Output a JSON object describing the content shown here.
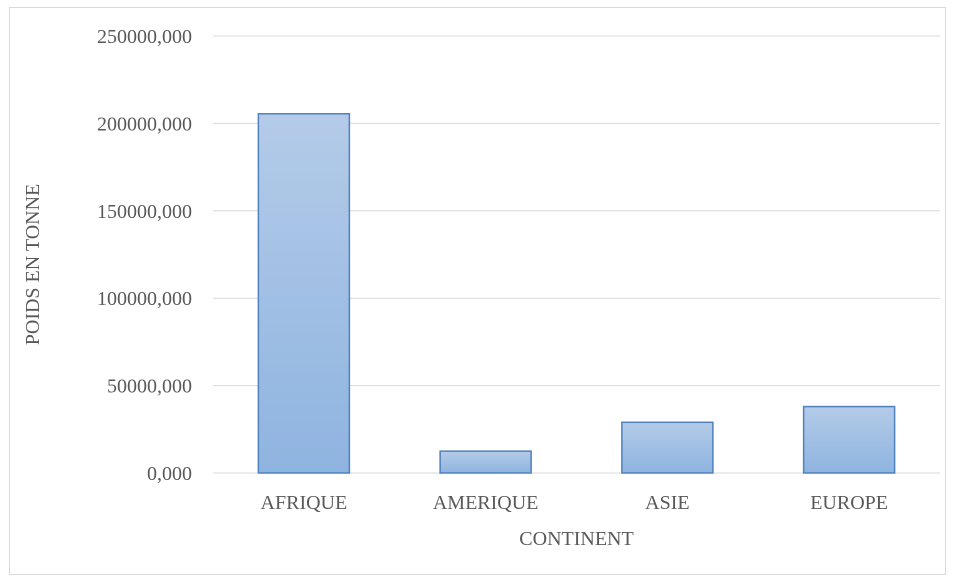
{
  "chart_data": {
    "type": "bar",
    "categories": [
      "AFRIQUE",
      "AMERIQUE",
      "ASIE",
      "EUROPE"
    ],
    "values": [
      205500,
      12500,
      29000,
      38000
    ],
    "xlabel": "CONTINENT",
    "ylabel": "POIDS EN TONNE",
    "ylim": [
      0,
      250000
    ],
    "yticks": [
      0,
      50000,
      100000,
      150000,
      200000,
      250000
    ],
    "ytick_labels": [
      "0,000",
      "50000,000",
      "100000,000",
      "150000,000",
      "200000,000",
      "250000,000"
    ],
    "grid": true,
    "legend": "none",
    "colors": {
      "bar_top": "#b4cbe8",
      "bar_bottom": "#8eb4e0",
      "bar_stroke": "#4f81bd",
      "grid": "#d9d9d9",
      "text": "#595959"
    }
  }
}
